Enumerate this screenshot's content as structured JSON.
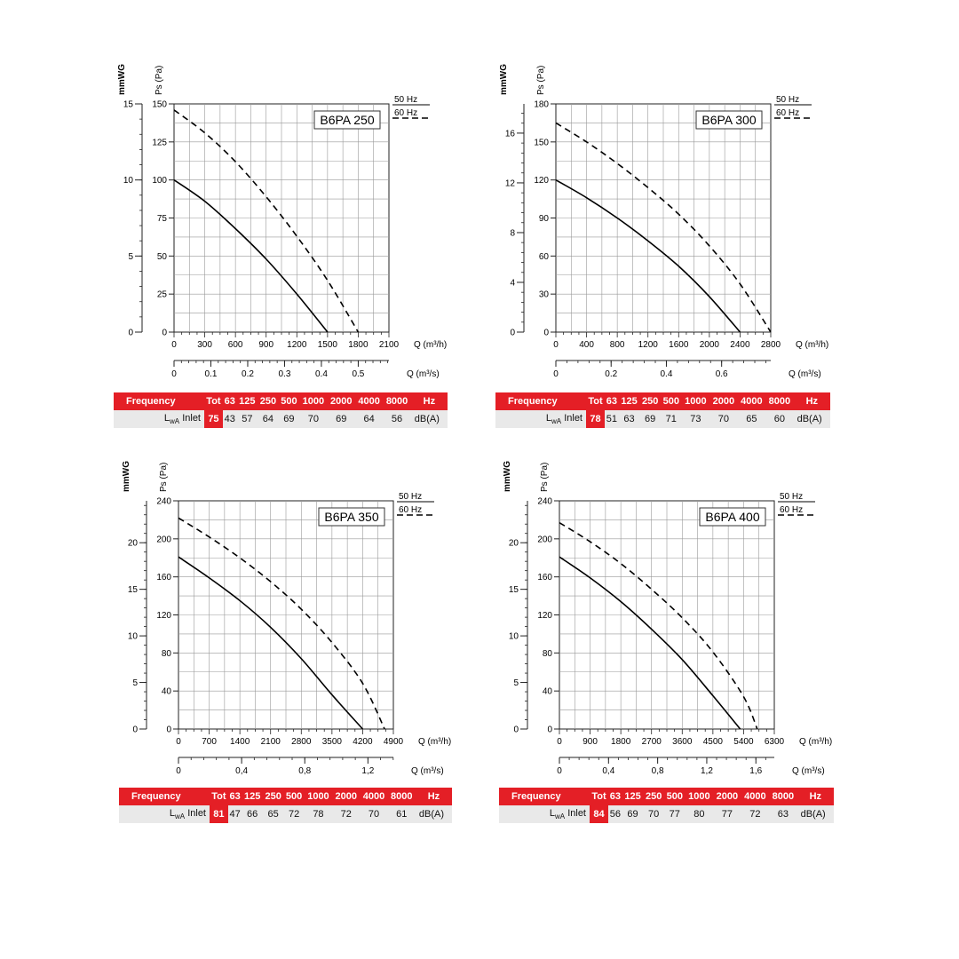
{
  "chart_data": [
    {
      "type": "line",
      "title": "B6PA 250",
      "ylabel": "Ps (Pa)",
      "y2label": "mmWG",
      "xlabel": "Q (m³/h)",
      "x2label": "Q (m³/s)",
      "xlim": [
        0,
        2100
      ],
      "ylim": [
        0,
        150
      ],
      "x_ticks": [
        "0",
        "300",
        "600",
        "900",
        "1200",
        "1500",
        "1800",
        "2100"
      ],
      "y_ticks": [
        "0",
        "25",
        "50",
        "75",
        "100",
        "125",
        "150"
      ],
      "y2_ticks": [
        "0",
        "5",
        "10",
        "15"
      ],
      "y2_max": 15,
      "x2_ticks": [
        "0",
        "0.1",
        "0.2",
        "0.3",
        "0.4",
        "0.5"
      ],
      "x2_step": 0.1,
      "legend": [
        "50 Hz",
        "60 Hz"
      ],
      "series": [
        {
          "name": "50 Hz",
          "style": "solid",
          "x": [
            0,
            300,
            600,
            900,
            1200,
            1500
          ],
          "y": [
            100,
            86,
            68,
            48,
            25,
            0
          ]
        },
        {
          "name": "60 Hz",
          "style": "dashed",
          "x": [
            0,
            300,
            600,
            900,
            1200,
            1500,
            1800
          ],
          "y": [
            146,
            131,
            112,
            89,
            63,
            34,
            0
          ]
        }
      ],
      "table": {
        "header": [
          "Frequency",
          "Tot",
          "63",
          "125",
          "250",
          "500",
          "1000",
          "2000",
          "4000",
          "8000",
          "Hz"
        ],
        "row_label": "Inlet",
        "tot": "75",
        "values": [
          "43",
          "57",
          "64",
          "69",
          "70",
          "69",
          "64",
          "56"
        ],
        "unit": "dB(A)"
      }
    },
    {
      "type": "line",
      "title": "B6PA 300",
      "ylabel": "Ps (Pa)",
      "y2label": "mmWG",
      "xlabel": "Q (m³/h)",
      "x2label": "Q (m³/s)",
      "xlim": [
        0,
        2800
      ],
      "ylim": [
        0,
        180
      ],
      "x_ticks": [
        "0",
        "400",
        "800",
        "1200",
        "1600",
        "2000",
        "2400",
        "2800"
      ],
      "y_ticks": [
        "0",
        "30",
        "60",
        "90",
        "120",
        "150",
        "180"
      ],
      "y2_ticks": [
        "0",
        "4",
        "8",
        "12",
        "16"
      ],
      "y2_max": 18.35,
      "x2_ticks": [
        "0",
        "0.2",
        "0.4",
        "0.6"
      ],
      "x2_step": 0.2,
      "legend": [
        "50 Hz",
        "60 Hz"
      ],
      "series": [
        {
          "name": "50 Hz",
          "style": "solid",
          "x": [
            0,
            400,
            800,
            1200,
            1600,
            2000,
            2400
          ],
          "y": [
            120,
            106,
            90,
            72,
            52,
            28,
            0
          ]
        },
        {
          "name": "60 Hz",
          "style": "dashed",
          "x": [
            0,
            400,
            800,
            1200,
            1600,
            2000,
            2400,
            2800
          ],
          "y": [
            165,
            150,
            133,
            114,
            93,
            68,
            38,
            0
          ]
        }
      ],
      "table": {
        "header": [
          "Frequency",
          "Tot",
          "63",
          "125",
          "250",
          "500",
          "1000",
          "2000",
          "4000",
          "8000",
          "Hz"
        ],
        "row_label": "Inlet",
        "tot": "78",
        "values": [
          "51",
          "63",
          "69",
          "71",
          "73",
          "70",
          "65",
          "60"
        ],
        "unit": "dB(A)"
      }
    },
    {
      "type": "line",
      "title": "B6PA 350",
      "ylabel": "Ps (Pa)",
      "y2label": "mmWG",
      "xlabel": "Q (m³/h)",
      "x2label": "Q (m³/s)",
      "xlim": [
        0,
        4900
      ],
      "ylim": [
        0,
        240
      ],
      "x_ticks": [
        "0",
        "700",
        "1400",
        "2100",
        "2800",
        "3500",
        "4200",
        "4900"
      ],
      "y_ticks": [
        "0",
        "40",
        "80",
        "120",
        "160",
        "200",
        "240"
      ],
      "y2_ticks": [
        "0",
        "5",
        "10",
        "15",
        "20"
      ],
      "y2_max": 24.5,
      "x2_ticks": [
        "0",
        "0,4",
        "0,8",
        "1,2"
      ],
      "x2_step": 0.4,
      "legend": [
        "50 Hz",
        "60 Hz"
      ],
      "series": [
        {
          "name": "50 Hz",
          "style": "solid",
          "x": [
            0,
            700,
            1400,
            2100,
            2800,
            3500,
            4200
          ],
          "y": [
            181,
            159,
            135,
            107,
            74,
            36,
            0
          ]
        },
        {
          "name": "60 Hz",
          "style": "dashed",
          "x": [
            0,
            700,
            1400,
            2100,
            2800,
            3500,
            4200,
            4700
          ],
          "y": [
            222,
            202,
            180,
            155,
            126,
            91,
            48,
            0
          ]
        }
      ],
      "table": {
        "header": [
          "Frequency",
          "Tot",
          "63",
          "125",
          "250",
          "500",
          "1000",
          "2000",
          "4000",
          "8000",
          "Hz"
        ],
        "row_label": "Inlet",
        "tot": "81",
        "values": [
          "47",
          "66",
          "65",
          "72",
          "78",
          "72",
          "70",
          "61"
        ],
        "unit": "dB(A)"
      }
    },
    {
      "type": "line",
      "title": "B6PA 400",
      "ylabel": "Ps (Pa)",
      "y2label": "mmWG",
      "xlabel": "Q (m³/h)",
      "x2label": "Q (m³/s)",
      "xlim": [
        0,
        6300
      ],
      "ylim": [
        0,
        240
      ],
      "x_ticks": [
        "0",
        "900",
        "1800",
        "2700",
        "3600",
        "4500",
        "5400",
        "6300"
      ],
      "y_ticks": [
        "0",
        "40",
        "80",
        "120",
        "160",
        "200",
        "240"
      ],
      "y2_ticks": [
        "0",
        "5",
        "10",
        "15",
        "20"
      ],
      "y2_max": 24.5,
      "x2_ticks": [
        "0",
        "0,4",
        "0,8",
        "1,2",
        "1,6"
      ],
      "x2_step": 0.4,
      "legend": [
        "50 Hz",
        "60 Hz"
      ],
      "series": [
        {
          "name": "50 Hz",
          "style": "solid",
          "x": [
            0,
            900,
            1800,
            2700,
            3600,
            4500,
            5300
          ],
          "y": [
            181,
            159,
            134,
            105,
            73,
            35,
            0
          ]
        },
        {
          "name": "60 Hz",
          "style": "dashed",
          "x": [
            0,
            900,
            1800,
            2700,
            3600,
            4500,
            5400,
            5800
          ],
          "y": [
            217,
            197,
            174,
            147,
            117,
            81,
            34,
            0
          ]
        }
      ],
      "table": {
        "header": [
          "Frequency",
          "Tot",
          "63",
          "125",
          "250",
          "500",
          "1000",
          "2000",
          "4000",
          "8000",
          "Hz"
        ],
        "row_label": "Inlet",
        "tot": "84",
        "values": [
          "56",
          "69",
          "70",
          "77",
          "80",
          "77",
          "72",
          "63"
        ],
        "unit": "dB(A)"
      }
    }
  ],
  "table_row_prefix": "L",
  "table_row_sub": "wA"
}
